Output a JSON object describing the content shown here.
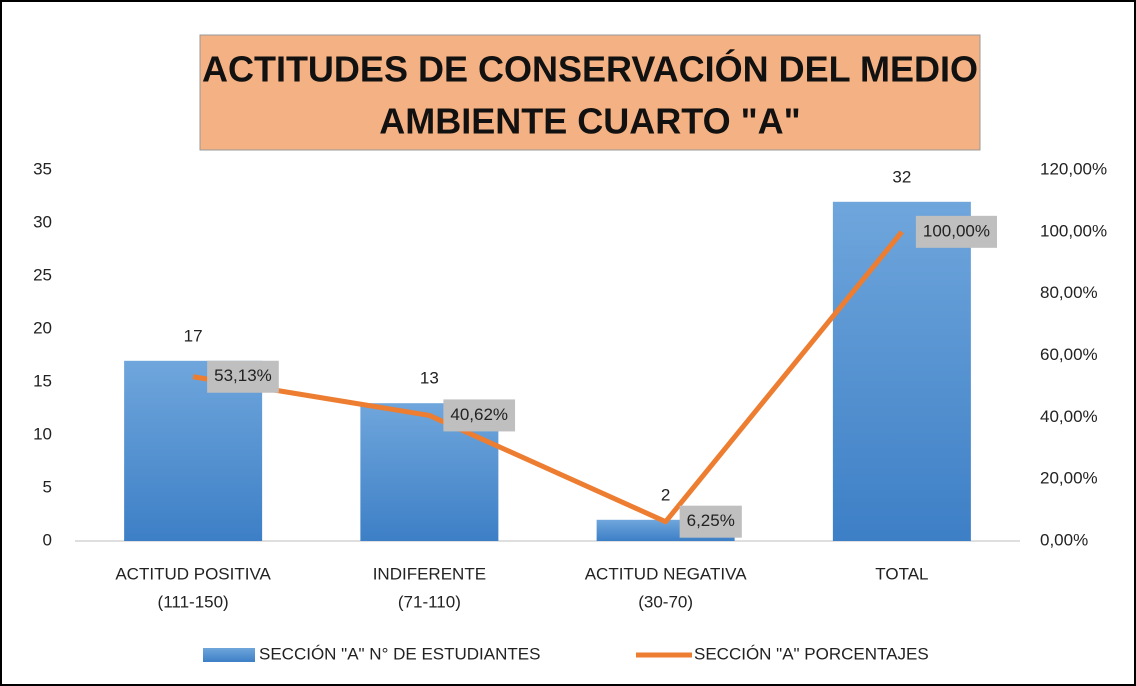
{
  "chart_data": {
    "type": "bar",
    "title": [
      "ACTITUDES DE CONSERVACIÓN DEL MEDIO",
      "AMBIENTE CUARTO \"A\""
    ],
    "categories": [
      [
        "ACTITUD POSITIVA",
        "(111-150)"
      ],
      [
        "INDIFERENTE",
        "(71-110)"
      ],
      [
        "ACTITUD NEGATIVA",
        "(30-70)"
      ],
      [
        "TOTAL",
        null
      ]
    ],
    "series": [
      {
        "name": "SECCIÓN \"A\" N° DE ESTUDIANTES",
        "type": "bar",
        "color": "#5b9bd5",
        "values": [
          17,
          13,
          2,
          32
        ]
      },
      {
        "name": "SECCIÓN \"A\" PORCENTAJES",
        "type": "line",
        "axis": "y2",
        "color": "#ed7d31",
        "values": [
          53.13,
          40.62,
          6.25,
          100
        ],
        "value_labels": [
          "53,13%",
          "40,62%",
          "6,25%",
          "100,00%"
        ]
      }
    ],
    "ylim": [
      0,
      35
    ],
    "yticks": [
      0,
      5,
      10,
      15,
      20,
      25,
      30,
      35
    ],
    "y2lim": [
      0,
      120
    ],
    "y2ticks": [
      {
        "value": 0,
        "label": "0,00%"
      },
      {
        "value": 20,
        "label": "20,00%"
      },
      {
        "value": 40,
        "label": "40,00%"
      },
      {
        "value": 60,
        "label": "60,00%"
      },
      {
        "value": 80,
        "label": "80,00%"
      },
      {
        "value": 100,
        "label": "100,00%"
      },
      {
        "value": 120,
        "label": "120,00%"
      }
    ],
    "grid": false,
    "legend": "bottom"
  }
}
